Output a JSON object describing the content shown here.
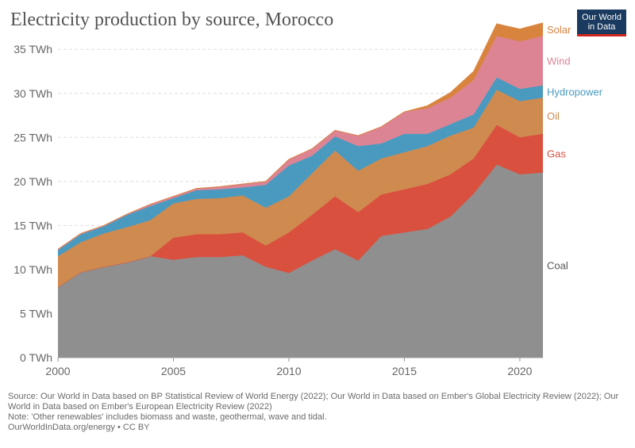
{
  "header": {
    "title": "Electricity production by source, Morocco",
    "logo_line1": "Our World",
    "logo_line2": "in Data"
  },
  "footer": {
    "source": "Source: Our World in Data based on BP Statistical Review of World Energy (2022); Our World in Data based on Ember's Global Electricity Review (2022); Our World in Data based on Ember's European Electricity Review (2022)",
    "note": "Note: 'Other renewables' includes biomass and waste, geothermal, wave and tidal.",
    "url": "OurWorldInData.org/energy • CC BY"
  },
  "chart_data": {
    "type": "area",
    "stacked": true,
    "title": "Electricity production by source, Morocco",
    "xlim": [
      2000,
      2021
    ],
    "ylim": [
      0,
      37
    ],
    "x_ticks": [
      2000,
      2005,
      2010,
      2015,
      2020
    ],
    "y_ticks": [
      0,
      5,
      10,
      15,
      20,
      25,
      30,
      35
    ],
    "y_tick_labels": [
      "0 TWh",
      "5 TWh",
      "10 TWh",
      "15 TWh",
      "20 TWh",
      "25 TWh",
      "30 TWh",
      "35 TWh"
    ],
    "grid": "horizontal dashed",
    "legend": "right, labels beside series ends",
    "x": [
      2000,
      2001,
      2002,
      2003,
      2004,
      2005,
      2006,
      2007,
      2008,
      2009,
      2010,
      2011,
      2012,
      2013,
      2014,
      2015,
      2016,
      2017,
      2018,
      2019,
      2020,
      2021
    ],
    "series": [
      {
        "name": "Coal",
        "color": "#8f8f8f",
        "values": [
          8.0,
          9.7,
          10.3,
          10.8,
          11.5,
          11.1,
          11.4,
          11.4,
          11.6,
          10.3,
          9.6,
          11.0,
          12.3,
          11.0,
          13.8,
          14.2,
          14.6,
          16.0,
          18.6,
          21.9,
          20.8,
          21.0
        ]
      },
      {
        "name": "Gas",
        "color": "#d9503f",
        "values": [
          0,
          0,
          0,
          0,
          0,
          2.5,
          2.6,
          2.6,
          2.6,
          2.4,
          4.6,
          5.2,
          6.0,
          5.5,
          4.7,
          4.9,
          5.1,
          4.8,
          4.0,
          4.5,
          4.2,
          4.4
        ]
      },
      {
        "name": "Oil",
        "color": "#cf8a4f",
        "values": [
          3.5,
          3.4,
          3.8,
          4.0,
          4.1,
          3.9,
          4.0,
          4.1,
          4.2,
          4.3,
          4.1,
          4.7,
          5.2,
          4.7,
          4.1,
          4.2,
          4.3,
          4.4,
          3.5,
          4.0,
          4.1,
          4.1
        ]
      },
      {
        "name": "Hydropower",
        "color": "#4a9ac0",
        "values": [
          0.7,
          0.9,
          0.8,
          1.4,
          1.6,
          0.6,
          1.0,
          1.0,
          0.9,
          2.6,
          3.5,
          2.0,
          1.6,
          2.8,
          1.7,
          2.1,
          1.4,
          1.3,
          1.5,
          1.4,
          1.4,
          1.4
        ]
      },
      {
        "name": "Wind",
        "color": "#dc8494",
        "values": [
          0.1,
          0.1,
          0.1,
          0.1,
          0.2,
          0.2,
          0.2,
          0.3,
          0.4,
          0.4,
          0.7,
          0.8,
          0.7,
          1.2,
          1.9,
          2.5,
          2.9,
          3.0,
          3.9,
          4.7,
          5.4,
          5.6
        ]
      },
      {
        "name": "Solar",
        "color": "#d9843e",
        "values": [
          0,
          0,
          0,
          0,
          0,
          0,
          0,
          0,
          0,
          0,
          0,
          0,
          0,
          0,
          0,
          0,
          0.3,
          0.6,
          1.0,
          1.4,
          1.4,
          1.5
        ]
      }
    ]
  }
}
